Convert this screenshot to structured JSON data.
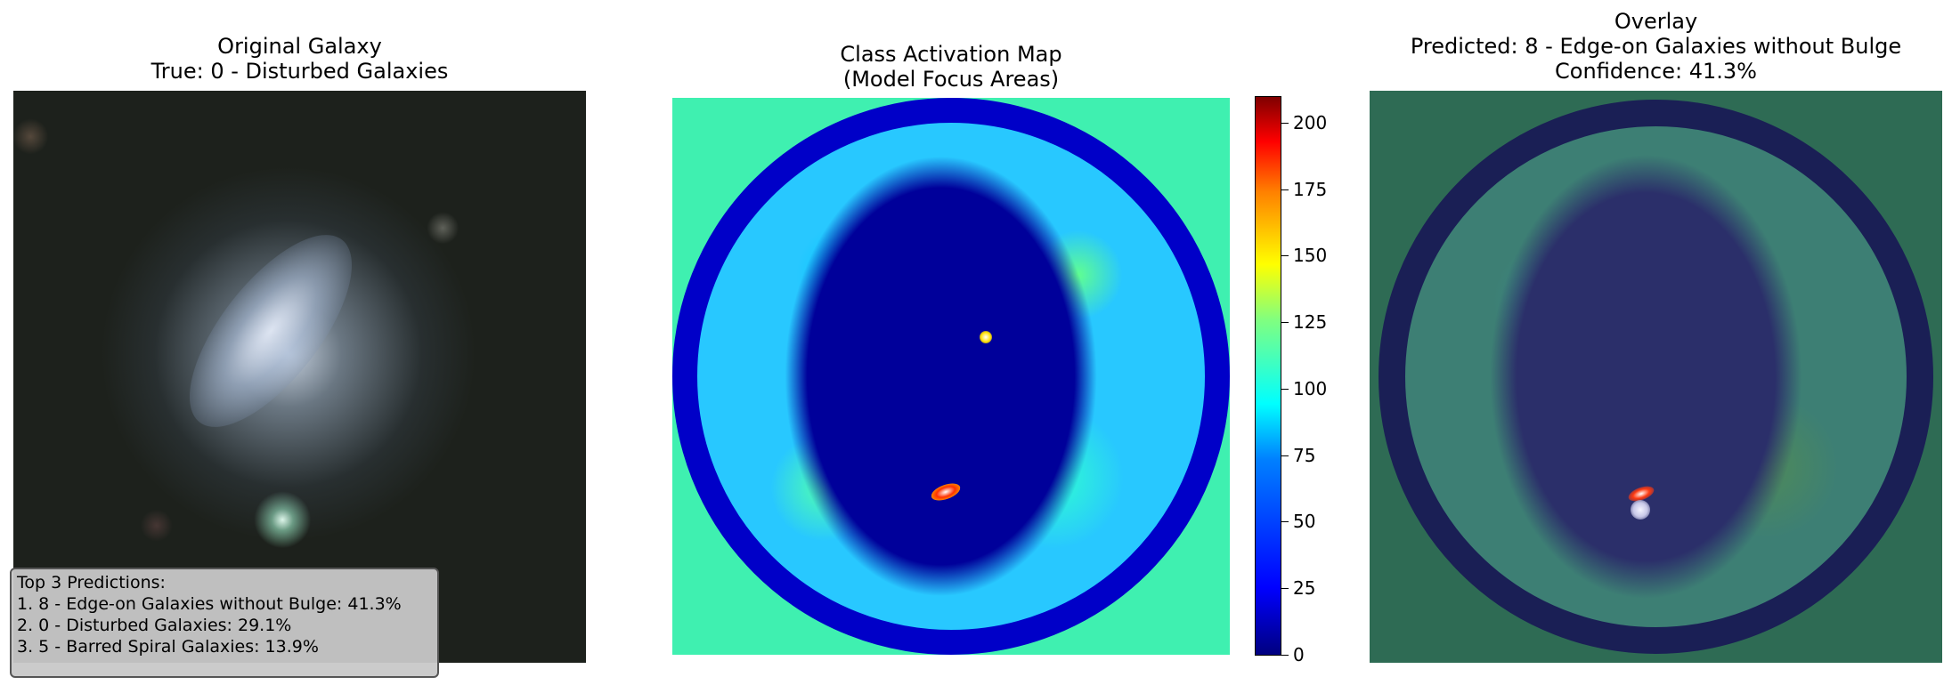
{
  "panels": {
    "original": {
      "title_line1": "Original Galaxy",
      "title_line2": "True: 0 - Disturbed Galaxies"
    },
    "cam": {
      "title_line1": "Class Activation Map",
      "title_line2": "(Model Focus Areas)"
    },
    "overlay": {
      "title_line1": "Overlay",
      "title_line2": "Predicted: 8 - Edge-on Galaxies without Bulge",
      "title_line3": "Confidence: 41.3%"
    }
  },
  "predictions": {
    "heading": "Top 3 Predictions:",
    "items": [
      "1. 8 - Edge-on Galaxies without Bulge: 41.3%",
      "2. 0 - Disturbed Galaxies: 29.1%",
      "3. 5 - Barred Spiral Galaxies: 13.9%"
    ]
  },
  "colorbar": {
    "colormap": "jet",
    "min": 0,
    "max": 210,
    "ticks": [
      "0",
      "25",
      "50",
      "75",
      "100",
      "125",
      "150",
      "175",
      "200"
    ]
  }
}
